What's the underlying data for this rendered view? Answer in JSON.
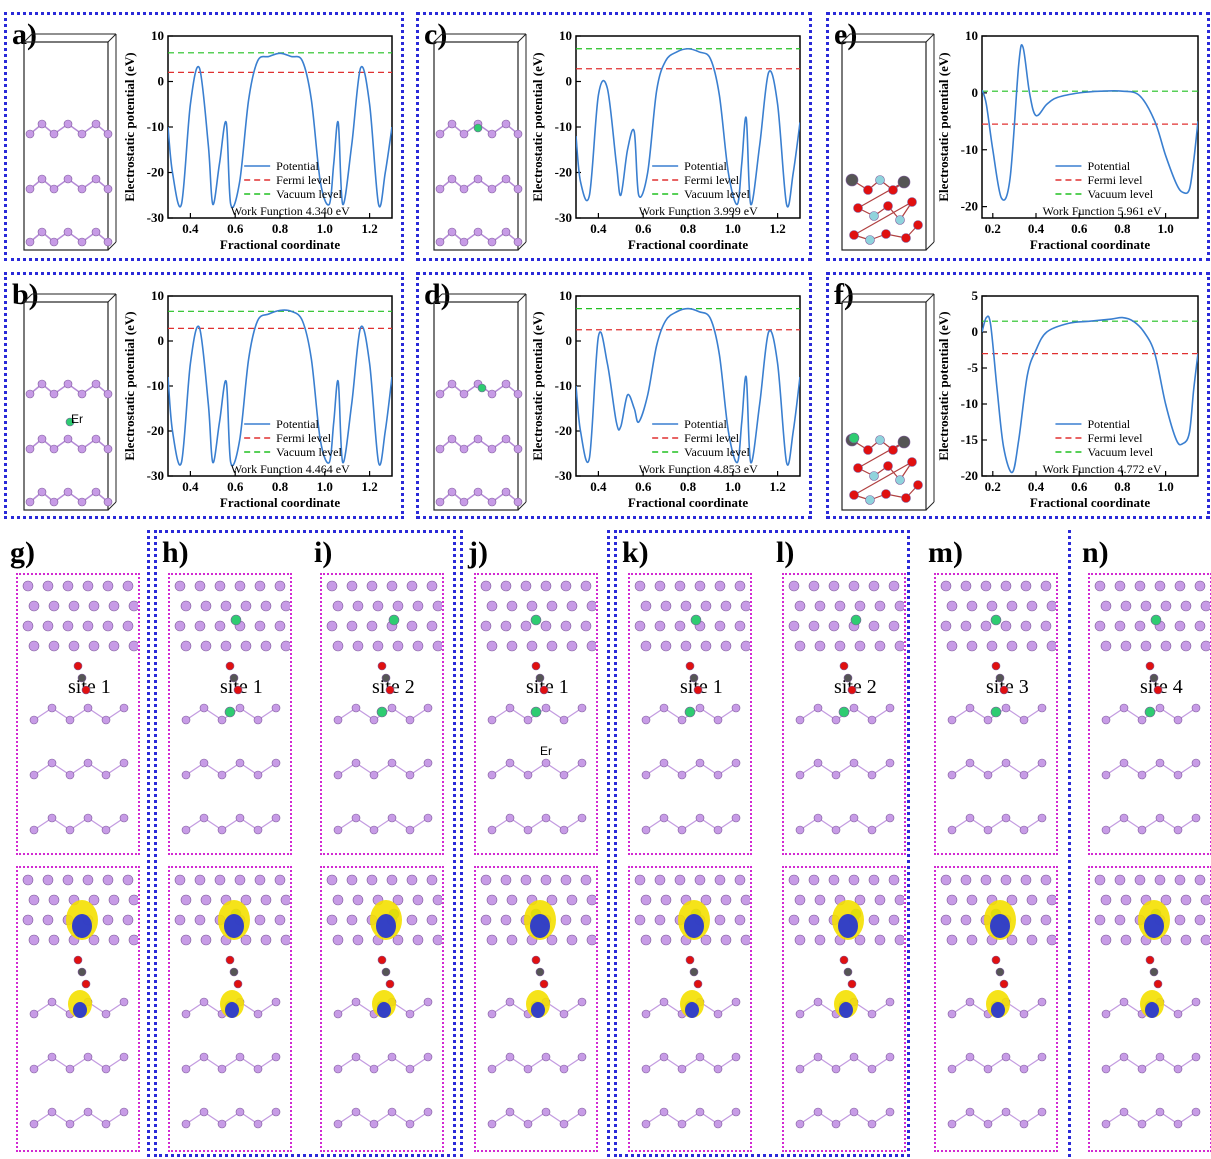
{
  "colors": {
    "potential": "#3a7fd0",
    "fermi": "#e03030",
    "vacuum": "#20c020",
    "panel_border": "#2a2ad8",
    "sub_border": "#d22ad2",
    "atom_b": "#c79be6",
    "atom_er": "#2ecc71",
    "atom_o": "#e01010",
    "atom_c": "#555555",
    "atom_al": "#8fd3dc",
    "charge_yellow": "#f4e000",
    "charge_blue": "#1f2fd8"
  },
  "top_panels": [
    {
      "id": "a",
      "label": "a)",
      "work_function": "Work Function 4.340 eV"
    },
    {
      "id": "b",
      "label": "b)",
      "work_function": "Work Function 4.464 eV",
      "er_label": "Er"
    },
    {
      "id": "c",
      "label": "c)",
      "work_function": "Work Function 3.999 eV"
    },
    {
      "id": "d",
      "label": "d)",
      "work_function": "Work Function 4.853 eV"
    },
    {
      "id": "e",
      "label": "e)",
      "work_function": "Work Function 5.961 eV"
    },
    {
      "id": "f",
      "label": "f)",
      "work_function": "Work Function 4.772 eV"
    }
  ],
  "legend": {
    "potential": "Potential",
    "fermi": "Fermi level",
    "vacuum": "Vacuum level"
  },
  "bottom_panels": [
    {
      "id": "g",
      "label": "g)",
      "site": "site 1"
    },
    {
      "id": "h",
      "label": "h)",
      "site": "site 1"
    },
    {
      "id": "i",
      "label": "i)",
      "site": "site 2"
    },
    {
      "id": "j",
      "label": "j)",
      "site": "site 1",
      "er_label": "Er"
    },
    {
      "id": "k",
      "label": "k)",
      "site": "site 1"
    },
    {
      "id": "l",
      "label": "l)",
      "site": "site 2"
    },
    {
      "id": "m",
      "label": "m)",
      "site": "site 3"
    },
    {
      "id": "n",
      "label": "n)",
      "site": "site 4"
    }
  ],
  "chart_data": [
    {
      "panel": "a",
      "type": "line",
      "xlabel": "Fractional coordinate",
      "ylabel": "Electrostatic potential (eV)",
      "xlim": [
        0.3,
        1.3
      ],
      "ylim": [
        -30,
        10
      ],
      "xticks": [
        "0.4",
        "0.6",
        "0.8",
        "1.0",
        "1.2"
      ],
      "yticks": [
        "10",
        "0",
        "-10",
        "-20",
        "-30"
      ],
      "fermi": 2.0,
      "vacuum": 6.3,
      "series": [
        {
          "name": "Potential",
          "x": [
            0.3,
            0.32,
            0.36,
            0.4,
            0.44,
            0.48,
            0.5,
            0.53,
            0.56,
            0.58,
            0.62,
            0.66,
            0.7,
            0.75,
            0.8,
            0.85,
            0.9,
            0.94,
            0.98,
            1.02,
            1.04,
            1.06,
            1.08,
            1.12,
            1.16,
            1.2,
            1.24,
            1.27,
            1.3
          ],
          "y": [
            -10,
            -20,
            -27,
            -5,
            3,
            -14,
            -27,
            -18,
            -9,
            -27,
            -22,
            -4,
            4.5,
            5.5,
            6.2,
            5.5,
            4.5,
            -4,
            -22,
            -27,
            -18,
            -9,
            -27,
            -14,
            3,
            -5,
            -27,
            -20,
            -10
          ]
        }
      ]
    },
    {
      "panel": "b",
      "type": "line",
      "xlabel": "Fractional coordinate",
      "ylabel": "Electrostatic potential (eV)",
      "xlim": [
        0.3,
        1.3
      ],
      "ylim": [
        -30,
        10
      ],
      "xticks": [
        "0.4",
        "0.6",
        "0.8",
        "1.0",
        "1.2"
      ],
      "yticks": [
        "10",
        "0",
        "-10",
        "-20",
        "-30"
      ],
      "fermi": 2.8,
      "vacuum": 6.6,
      "series": [
        {
          "name": "Potential",
          "x": [
            0.3,
            0.32,
            0.36,
            0.4,
            0.44,
            0.48,
            0.5,
            0.53,
            0.56,
            0.58,
            0.62,
            0.66,
            0.7,
            0.75,
            0.8,
            0.85,
            0.9,
            0.94,
            0.98,
            1.02,
            1.04,
            1.06,
            1.08,
            1.12,
            1.16,
            1.2,
            1.24,
            1.27,
            1.3
          ],
          "y": [
            -8,
            -20,
            -27,
            -5,
            3,
            -14,
            -27,
            -18,
            -9,
            -27,
            -22,
            -4,
            4.5,
            6,
            6.8,
            6.6,
            4.5,
            -4,
            -22,
            -27,
            -18,
            -9,
            -27,
            -14,
            3,
            -5,
            -27,
            -20,
            -8
          ]
        }
      ]
    },
    {
      "panel": "c",
      "type": "line",
      "xlabel": "Fractional coordinate",
      "ylabel": "Electrostatic potential (eV)",
      "xlim": [
        0.3,
        1.3
      ],
      "ylim": [
        -30,
        10
      ],
      "xticks": [
        "0.4",
        "0.6",
        "0.8",
        "1.0",
        "1.2"
      ],
      "yticks": [
        "10",
        "0",
        "-10",
        "-20",
        "-30"
      ],
      "fermi": 2.8,
      "vacuum": 7.2,
      "series": [
        {
          "name": "Potential",
          "x": [
            0.3,
            0.32,
            0.36,
            0.4,
            0.44,
            0.48,
            0.5,
            0.53,
            0.56,
            0.58,
            0.62,
            0.66,
            0.7,
            0.75,
            0.8,
            0.85,
            0.9,
            0.94,
            0.98,
            1.02,
            1.04,
            1.06,
            1.08,
            1.12,
            1.16,
            1.2,
            1.24,
            1.27,
            1.3
          ],
          "y": [
            -12,
            -22,
            -25,
            -3,
            -1.5,
            -18,
            -25,
            -15,
            -11,
            -25,
            -20,
            -2,
            4.5,
            6.5,
            7.2,
            6.5,
            5,
            -3,
            -20,
            -27,
            -18,
            -8,
            -27,
            -14,
            2,
            -5,
            -27,
            -20,
            -9
          ]
        }
      ]
    },
    {
      "panel": "d",
      "type": "line",
      "xlabel": "Fractional coordinate",
      "ylabel": "Electrostatic potential (eV)",
      "xlim": [
        0.3,
        1.3
      ],
      "ylim": [
        -30,
        10
      ],
      "xticks": [
        "0.4",
        "0.6",
        "0.8",
        "1.0",
        "1.2"
      ],
      "yticks": [
        "10",
        "0",
        "-10",
        "-20",
        "-30"
      ],
      "fermi": 2.5,
      "vacuum": 7.2,
      "series": [
        {
          "name": "Potential",
          "x": [
            0.3,
            0.32,
            0.36,
            0.4,
            0.44,
            0.48,
            0.5,
            0.53,
            0.56,
            0.58,
            0.62,
            0.66,
            0.7,
            0.75,
            0.8,
            0.85,
            0.9,
            0.94,
            0.98,
            1.02,
            1.04,
            1.06,
            1.08,
            1.12,
            1.16,
            1.2,
            1.24,
            1.27,
            1.3
          ],
          "y": [
            -10,
            -20,
            -26,
            1,
            -5,
            -18,
            -19,
            -12,
            -15,
            -18,
            -12,
            -1,
            4.5,
            6.5,
            7.2,
            6.5,
            5,
            -3,
            -20,
            -27,
            -18,
            -8,
            -27,
            -14,
            2,
            -5,
            -27,
            -20,
            -8
          ]
        }
      ]
    },
    {
      "panel": "e",
      "type": "line",
      "xlabel": "Fractional coordinate",
      "ylabel": "Electrostatic potential (eV)",
      "xlim": [
        0.15,
        1.15
      ],
      "ylim": [
        -22,
        10
      ],
      "xticks": [
        "0.2",
        "0.4",
        "0.6",
        "0.8",
        "1.0"
      ],
      "yticks": [
        "10",
        "0",
        "-10",
        "-20"
      ],
      "fermi": -5.5,
      "vacuum": 0.3,
      "series": [
        {
          "name": "Potential",
          "x": [
            0.15,
            0.17,
            0.2,
            0.24,
            0.28,
            0.32,
            0.34,
            0.37,
            0.4,
            0.45,
            0.5,
            0.6,
            0.7,
            0.8,
            0.88,
            0.95,
            1.0,
            1.05,
            1.08,
            1.11,
            1.13,
            1.15
          ],
          "y": [
            0.5,
            -2,
            -10,
            -18.5,
            -15,
            5,
            8,
            0,
            -4,
            -2,
            -0.8,
            0,
            0.3,
            0.3,
            -0.5,
            -5,
            -11,
            -16,
            -17.5,
            -17,
            -12,
            -5
          ]
        }
      ]
    },
    {
      "panel": "f",
      "type": "line",
      "xlabel": "Fractional coordinate",
      "ylabel": "Electrostatic potential (eV)",
      "xlim": [
        0.15,
        1.15
      ],
      "ylim": [
        -20,
        5
      ],
      "xticks": [
        "0.2",
        "0.4",
        "0.6",
        "0.8",
        "1.0"
      ],
      "yticks": [
        "5",
        "0",
        "-5",
        "-10",
        "-15",
        "-20"
      ],
      "fermi": -3.0,
      "vacuum": 1.5,
      "series": [
        {
          "name": "Potential",
          "x": [
            0.15,
            0.17,
            0.19,
            0.22,
            0.25,
            0.29,
            0.32,
            0.36,
            0.4,
            0.45,
            0.55,
            0.65,
            0.75,
            0.8,
            0.85,
            0.9,
            0.95,
            1.0,
            1.05,
            1.08,
            1.11,
            1.13,
            1.15
          ],
          "y": [
            0,
            2,
            1,
            -8,
            -16,
            -19.5,
            -15,
            -6,
            -2.5,
            0,
            1.2,
            1.5,
            1.8,
            2,
            1.5,
            0,
            -3,
            -10,
            -15,
            -15.5,
            -14,
            -8,
            -3
          ]
        }
      ]
    }
  ]
}
